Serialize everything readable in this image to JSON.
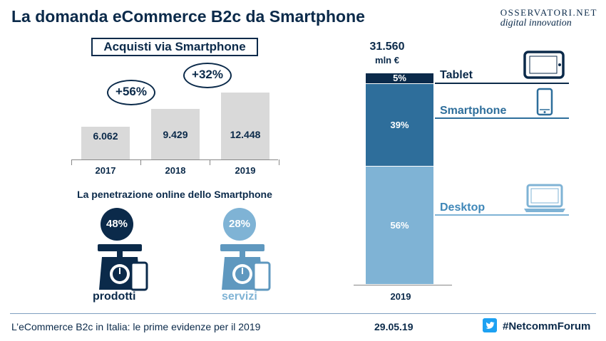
{
  "title": "La domanda eCommerce B2c da Smartphone",
  "logo": {
    "line1": "OSSERVATORI.NET",
    "line2": "digital innovation"
  },
  "chart_data": [
    {
      "type": "bar",
      "title": "Acquisti via Smartphone",
      "categories": [
        "2017",
        "2018",
        "2019"
      ],
      "values": [
        6062,
        9429,
        12448
      ],
      "value_labels": [
        "6.062",
        "9.429",
        "12.448"
      ],
      "growth_labels": [
        "+56%",
        "+32%"
      ],
      "ylim": [
        0,
        12448
      ]
    },
    {
      "type": "bar",
      "stacked": true,
      "categories": [
        "2019"
      ],
      "total_label": "31.560",
      "total_unit": "mln €",
      "series": [
        {
          "name": "Desktop",
          "value": 56,
          "label": "56%",
          "color": "#7fb3d5"
        },
        {
          "name": "Smartphone",
          "value": 39,
          "label": "39%",
          "color": "#2e6e9b"
        },
        {
          "name": "Tablet",
          "value": 5,
          "label": "5%",
          "color": "#0b2a4a"
        }
      ]
    }
  ],
  "penetration": {
    "title": "La penetrazione online dello Smartphone",
    "items": [
      {
        "value": "48%",
        "label": "prodotti",
        "color": "#0b2a4a",
        "label_color": "#0b2a4a"
      },
      {
        "value": "28%",
        "label": "servizi",
        "color": "#7fb3d5",
        "label_color": "#7fb3d5"
      }
    ]
  },
  "footer": {
    "text": "L’eCommerce B2c in Italia: le prime evidenze per il 2019",
    "date": "29.05.19",
    "hashtag": "#NetcommForum"
  },
  "icons": [
    "tablet-icon",
    "smartphone-icon",
    "laptop-icon",
    "scale-icon",
    "twitter-icon"
  ]
}
